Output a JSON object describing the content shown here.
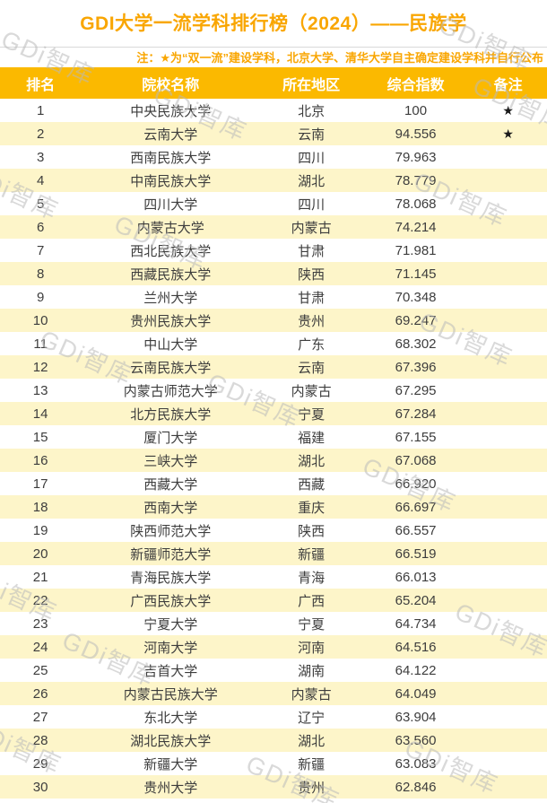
{
  "page": {
    "title": "GDI大学一流学科排行榜（2024）——民族学",
    "note": "注：★为“双一流”建设学科，北京大学、清华大学自主确定建设学科并自行公布"
  },
  "watermark": {
    "text": "GDi智库"
  },
  "colors": {
    "accent_gold": "#f9a602",
    "header_bg": "#fbb900",
    "row_alt_bg": "#fdf5c9",
    "body_text": "#3d3d3d",
    "watermark_gray": "#b9b9b9"
  },
  "table": {
    "columns": [
      "排名",
      "院校名称",
      "所在地区",
      "综合指数",
      "备注"
    ],
    "rows": [
      {
        "rank": "1",
        "name": "中央民族大学",
        "region": "北京",
        "index": "100",
        "note": "★"
      },
      {
        "rank": "2",
        "name": "云南大学",
        "region": "云南",
        "index": "94.556",
        "note": "★"
      },
      {
        "rank": "3",
        "name": "西南民族大学",
        "region": "四川",
        "index": "79.963",
        "note": ""
      },
      {
        "rank": "4",
        "name": "中南民族大学",
        "region": "湖北",
        "index": "78.779",
        "note": ""
      },
      {
        "rank": "5",
        "name": "四川大学",
        "region": "四川",
        "index": "78.068",
        "note": ""
      },
      {
        "rank": "6",
        "name": "内蒙古大学",
        "region": "内蒙古",
        "index": "74.214",
        "note": ""
      },
      {
        "rank": "7",
        "name": "西北民族大学",
        "region": "甘肃",
        "index": "71.981",
        "note": ""
      },
      {
        "rank": "8",
        "name": "西藏民族大学",
        "region": "陕西",
        "index": "71.145",
        "note": ""
      },
      {
        "rank": "9",
        "name": "兰州大学",
        "region": "甘肃",
        "index": "70.348",
        "note": ""
      },
      {
        "rank": "10",
        "name": "贵州民族大学",
        "region": "贵州",
        "index": "69.247",
        "note": ""
      },
      {
        "rank": "11",
        "name": "中山大学",
        "region": "广东",
        "index": "68.302",
        "note": ""
      },
      {
        "rank": "12",
        "name": "云南民族大学",
        "region": "云南",
        "index": "67.396",
        "note": ""
      },
      {
        "rank": "13",
        "name": "内蒙古师范大学",
        "region": "内蒙古",
        "index": "67.295",
        "note": ""
      },
      {
        "rank": "14",
        "name": "北方民族大学",
        "region": "宁夏",
        "index": "67.284",
        "note": ""
      },
      {
        "rank": "15",
        "name": "厦门大学",
        "region": "福建",
        "index": "67.155",
        "note": ""
      },
      {
        "rank": "16",
        "name": "三峡大学",
        "region": "湖北",
        "index": "67.068",
        "note": ""
      },
      {
        "rank": "17",
        "name": "西藏大学",
        "region": "西藏",
        "index": "66.920",
        "note": ""
      },
      {
        "rank": "18",
        "name": "西南大学",
        "region": "重庆",
        "index": "66.697",
        "note": ""
      },
      {
        "rank": "19",
        "name": "陕西师范大学",
        "region": "陕西",
        "index": "66.557",
        "note": ""
      },
      {
        "rank": "20",
        "name": "新疆师范大学",
        "region": "新疆",
        "index": "66.519",
        "note": ""
      },
      {
        "rank": "21",
        "name": "青海民族大学",
        "region": "青海",
        "index": "66.013",
        "note": ""
      },
      {
        "rank": "22",
        "name": "广西民族大学",
        "region": "广西",
        "index": "65.204",
        "note": ""
      },
      {
        "rank": "23",
        "name": "宁夏大学",
        "region": "宁夏",
        "index": "64.734",
        "note": ""
      },
      {
        "rank": "24",
        "name": "河南大学",
        "region": "河南",
        "index": "64.516",
        "note": ""
      },
      {
        "rank": "25",
        "name": "吉首大学",
        "region": "湖南",
        "index": "64.122",
        "note": ""
      },
      {
        "rank": "26",
        "name": "内蒙古民族大学",
        "region": "内蒙古",
        "index": "64.049",
        "note": ""
      },
      {
        "rank": "27",
        "name": "东北大学",
        "region": "辽宁",
        "index": "63.904",
        "note": ""
      },
      {
        "rank": "28",
        "name": "湖北民族大学",
        "region": "湖北",
        "index": "63.560",
        "note": ""
      },
      {
        "rank": "29",
        "name": "新疆大学",
        "region": "新疆",
        "index": "63.083",
        "note": ""
      },
      {
        "rank": "30",
        "name": "贵州大学",
        "region": "贵州",
        "index": "62.846",
        "note": ""
      }
    ]
  }
}
